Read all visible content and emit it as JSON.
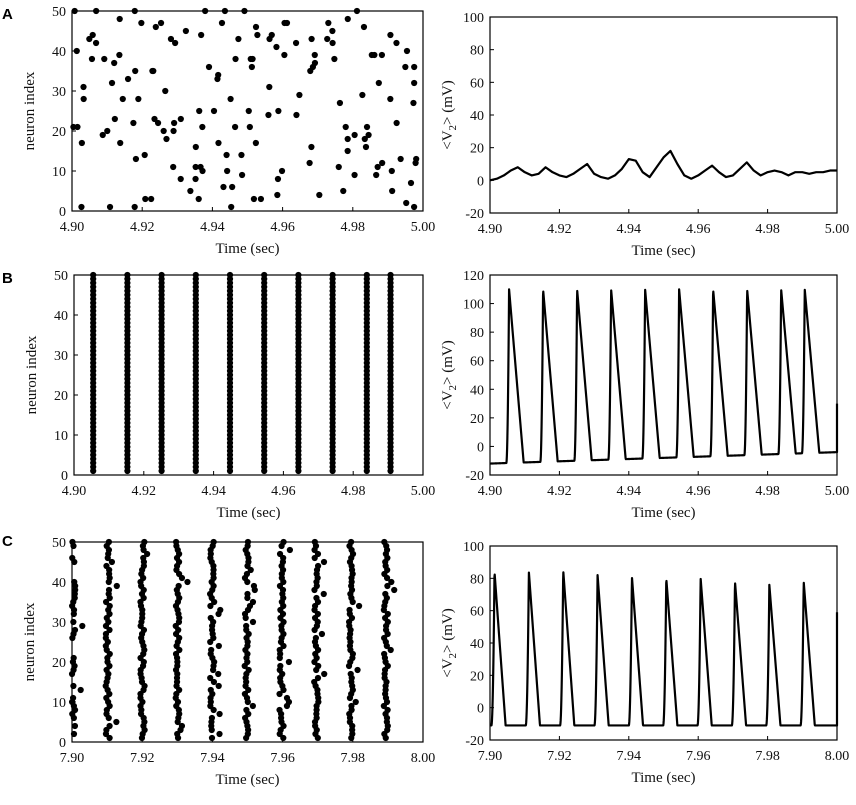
{
  "panels": [
    {
      "letter": "A"
    },
    {
      "letter": "B"
    },
    {
      "letter": "C"
    }
  ],
  "chart_data": [
    {
      "id": "raster-a",
      "panel": "A",
      "type": "scatter",
      "xlabel": "Time (sec)",
      "ylabel": "neuron index",
      "xlim": [
        4.9,
        5.0
      ],
      "ylim": [
        0,
        50
      ],
      "xticks": [
        "4.90",
        "4.92",
        "4.94",
        "4.96",
        "4.98",
        "5.00"
      ],
      "yticks": [
        "0",
        "10",
        "20",
        "30",
        "40",
        "50"
      ],
      "pattern": "asynchronous",
      "seed": 7,
      "n_spikes": 160
    },
    {
      "id": "trace-a",
      "panel": "A",
      "type": "line",
      "xlabel": "Time (sec)",
      "ylabel": "<V2> (mV)",
      "ylabel_sub": "2",
      "xlim": [
        4.9,
        5.0
      ],
      "ylim": [
        -20,
        100
      ],
      "xticks": [
        "4.90",
        "4.92",
        "4.94",
        "4.96",
        "4.98",
        "5.00"
      ],
      "yticks": [
        "-20",
        "0",
        "20",
        "40",
        "60",
        "80",
        "100"
      ],
      "points": [
        [
          4.9,
          0
        ],
        [
          4.902,
          1
        ],
        [
          4.904,
          3
        ],
        [
          4.906,
          6
        ],
        [
          4.908,
          8
        ],
        [
          4.91,
          5
        ],
        [
          4.912,
          3
        ],
        [
          4.914,
          4
        ],
        [
          4.916,
          8
        ],
        [
          4.918,
          5
        ],
        [
          4.92,
          3
        ],
        [
          4.922,
          2
        ],
        [
          4.924,
          4
        ],
        [
          4.926,
          7
        ],
        [
          4.928,
          10
        ],
        [
          4.93,
          4
        ],
        [
          4.932,
          2
        ],
        [
          4.934,
          1
        ],
        [
          4.936,
          3
        ],
        [
          4.938,
          7
        ],
        [
          4.94,
          13
        ],
        [
          4.942,
          12
        ],
        [
          4.944,
          5
        ],
        [
          4.946,
          2
        ],
        [
          4.948,
          8
        ],
        [
          4.95,
          14
        ],
        [
          4.952,
          18
        ],
        [
          4.954,
          10
        ],
        [
          4.956,
          3
        ],
        [
          4.958,
          1
        ],
        [
          4.96,
          3
        ],
        [
          4.962,
          6
        ],
        [
          4.964,
          9
        ],
        [
          4.966,
          5
        ],
        [
          4.968,
          2
        ],
        [
          4.97,
          3
        ],
        [
          4.972,
          7
        ],
        [
          4.974,
          11
        ],
        [
          4.976,
          6
        ],
        [
          4.978,
          3
        ],
        [
          4.98,
          5
        ],
        [
          4.982,
          6
        ],
        [
          4.984,
          5
        ],
        [
          4.986,
          3
        ],
        [
          4.988,
          5
        ],
        [
          4.99,
          5
        ],
        [
          4.992,
          4
        ],
        [
          4.994,
          5
        ],
        [
          4.996,
          5
        ],
        [
          4.998,
          6
        ],
        [
          5.0,
          6
        ]
      ]
    },
    {
      "id": "raster-b",
      "panel": "B",
      "type": "scatter",
      "xlabel": "Time (sec)",
      "ylabel": "neuron index",
      "xlim": [
        4.9,
        5.0
      ],
      "ylim": [
        0,
        50
      ],
      "xticks": [
        "4.90",
        "4.92",
        "4.94",
        "4.96",
        "4.98",
        "5.00"
      ],
      "yticks": [
        "0",
        "10",
        "20",
        "30",
        "40",
        "50"
      ],
      "pattern": "synchronous",
      "burst_times": [
        4.9055,
        4.9153,
        4.9251,
        4.9349,
        4.9447,
        4.9545,
        4.9643,
        4.9741,
        4.9839,
        4.9907
      ]
    },
    {
      "id": "trace-b",
      "panel": "B",
      "type": "line",
      "xlabel": "Time (sec)",
      "ylabel": "<V2> (mV)",
      "ylabel_sub": "2",
      "xlim": [
        4.9,
        5.0
      ],
      "ylim": [
        -20,
        120
      ],
      "xticks": [
        "4.90",
        "4.92",
        "4.94",
        "4.96",
        "4.98",
        "5.00"
      ],
      "yticks": [
        "-20",
        "0",
        "20",
        "40",
        "60",
        "80",
        "100",
        "120"
      ],
      "spike_times": [
        4.9055,
        4.9153,
        4.9251,
        4.9349,
        4.9447,
        4.9545,
        4.9643,
        4.9741,
        4.9839,
        4.9907
      ],
      "spike_peak": 110,
      "baseline_start": -12,
      "baseline_end": -4,
      "final_value": 30
    },
    {
      "id": "raster-c",
      "panel": "C",
      "type": "scatter",
      "xlabel": "Time (sec)",
      "ylabel": "neuron index",
      "xlim": [
        7.9,
        8.0
      ],
      "ylim": [
        0,
        50
      ],
      "xticks": [
        "7.90",
        "7.92",
        "7.94",
        "7.96",
        "7.98",
        "8.00"
      ],
      "yticks": [
        "0",
        "10",
        "20",
        "30",
        "40",
        "50"
      ],
      "pattern": "jittered",
      "burst_times": [
        7.9003,
        7.9102,
        7.9201,
        7.93,
        7.9399,
        7.9498,
        7.9597,
        7.9696,
        7.9795,
        7.9894
      ],
      "seed": 13
    },
    {
      "id": "trace-c",
      "panel": "C",
      "type": "line",
      "xlabel": "Time (sec)",
      "ylabel": "<V2> (mV)",
      "ylabel_sub": "2",
      "xlim": [
        7.9,
        8.0
      ],
      "ylim": [
        -20,
        100
      ],
      "xticks": [
        "7.90",
        "7.92",
        "7.94",
        "7.96",
        "7.98",
        "8.00"
      ],
      "yticks": [
        "-20",
        "0",
        "20",
        "40",
        "60",
        "80",
        "100"
      ],
      "spike_times": [
        7.9013,
        7.9112,
        7.9211,
        7.931,
        7.9409,
        7.9508,
        7.9607,
        7.9706,
        7.9805,
        7.9904
      ],
      "spike_peaks": [
        84,
        84,
        85,
        82,
        81,
        80,
        80,
        78,
        76,
        78
      ],
      "baseline": -11,
      "final_value": 59
    }
  ]
}
